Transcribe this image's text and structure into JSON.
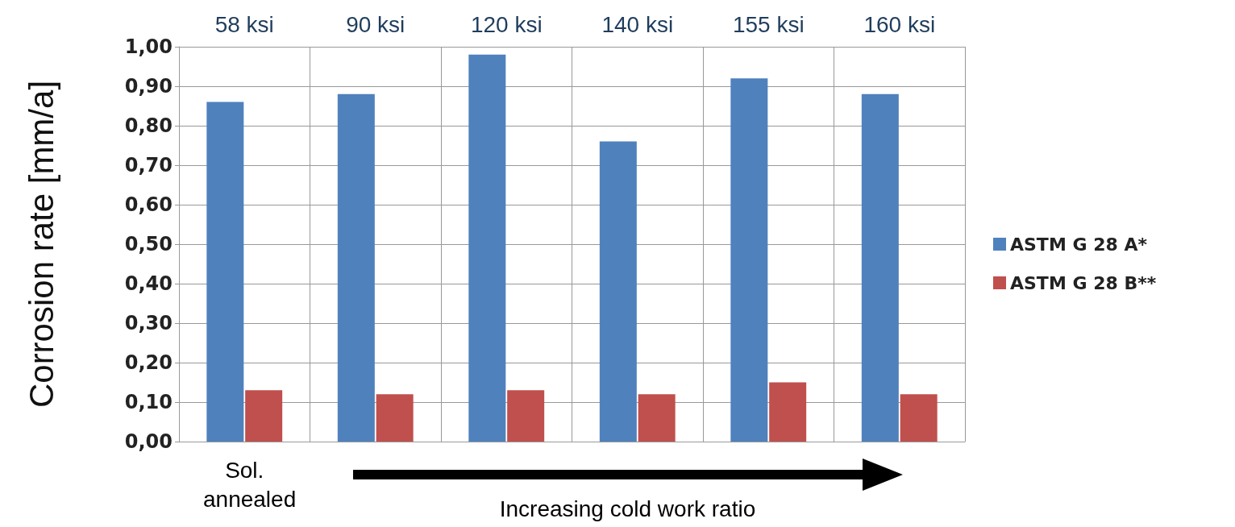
{
  "chart_data": {
    "type": "bar",
    "ylabel": "Corrosion rate [mm/a]",
    "categories": [
      "58 ksi",
      "90 ksi",
      "120 ksi",
      "140 ksi",
      "155 ksi",
      "160 ksi"
    ],
    "series": [
      {
        "name": "ASTM G 28 A*",
        "color": "#4f81bd",
        "values": [
          0.86,
          0.88,
          0.98,
          0.76,
          0.92,
          0.88
        ]
      },
      {
        "name": "ASTM G 28 B**",
        "color": "#c0504d",
        "values": [
          0.13,
          0.12,
          0.13,
          0.12,
          0.15,
          0.12
        ]
      }
    ],
    "ylim": [
      0,
      1
    ],
    "yticks": [
      {
        "value": 0,
        "label": "0,00"
      },
      {
        "value": 0.1,
        "label": "0,10"
      },
      {
        "value": 0.2,
        "label": "0,20"
      },
      {
        "value": 0.3,
        "label": "0,30"
      },
      {
        "value": 0.4,
        "label": "0,40"
      },
      {
        "value": 0.5,
        "label": "0,50"
      },
      {
        "value": 0.6,
        "label": "0,60"
      },
      {
        "value": 0.7,
        "label": "0,70"
      },
      {
        "value": 0.8,
        "label": "0,80"
      },
      {
        "value": 0.9,
        "label": "0,90"
      },
      {
        "value": 1,
        "label": "1,00"
      }
    ],
    "grid": true,
    "legend": "right",
    "annotations": [
      "Sol. annealed",
      "Increasing cold work ratio"
    ]
  }
}
